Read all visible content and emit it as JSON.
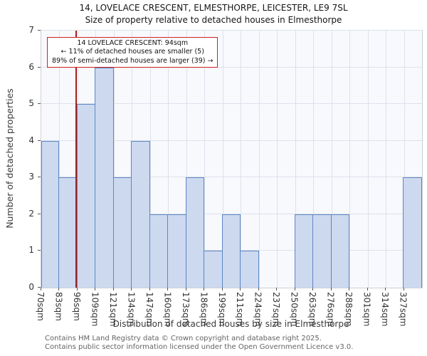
{
  "chart_data": {
    "type": "bar",
    "title": "14, LOVELACE CRESCENT, ELMESTHORPE, LEICESTER, LE9 7SL",
    "subtitle": "Size of property relative to detached houses in Elmesthorpe",
    "categories": [
      "70sqm",
      "83sqm",
      "96sqm",
      "109sqm",
      "121sqm",
      "134sqm",
      "147sqm",
      "160sqm",
      "173sqm",
      "186sqm",
      "199sqm",
      "211sqm",
      "224sqm",
      "237sqm",
      "250sqm",
      "263sqm",
      "276sqm",
      "288sqm",
      "301sqm",
      "314sqm",
      "327sqm"
    ],
    "values": [
      4,
      3,
      5,
      6,
      3,
      4,
      2,
      2,
      3,
      1,
      2,
      1,
      0,
      0,
      2,
      2,
      2,
      0,
      0,
      0,
      3
    ],
    "xlabel": "Distribution of detached houses by size in Elmesthorpe",
    "ylabel": "Number of detached properties",
    "ylim": [
      0,
      7
    ],
    "yticks": [
      0,
      1,
      2,
      3,
      4,
      5,
      6,
      7
    ],
    "xlim": [
      70,
      340
    ],
    "grid": true,
    "legend": "none",
    "bar_fill": "#cdd9ef",
    "bar_border": "#5b87c5",
    "marker": {
      "value": 94,
      "color": "#a02020"
    },
    "annotation": {
      "line1": "14 LOVELACE CRESCENT: 94sqm",
      "line2": "← 11% of detached houses are smaller (5)",
      "line3": "89% of semi-detached houses are larger (39) →"
    }
  },
  "footer": {
    "line1": "Contains HM Land Registry data © Crown copyright and database right 2025.",
    "line2": "Contains public sector information licensed under the Open Government Licence v3.0."
  }
}
